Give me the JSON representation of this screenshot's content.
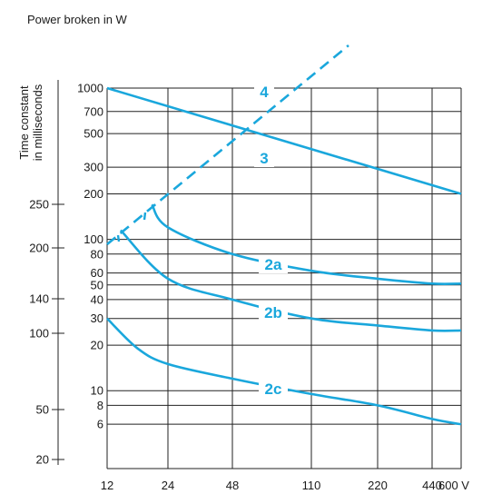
{
  "chart_data": {
    "type": "line",
    "title": "Power broken in W",
    "ylabel": "Time constant in milliseconds",
    "x_ticks": [
      "12",
      "24",
      "48",
      "110",
      "220",
      "440",
      "600 V"
    ],
    "y_ticks_right": [
      "1000",
      "700",
      "500",
      "300",
      "200",
      "100",
      "80",
      "60",
      "50",
      "40",
      "30",
      "20",
      "10",
      "8",
      "6"
    ],
    "y_ticks_left": [
      "250",
      "200",
      "140",
      "100",
      "50",
      "20"
    ],
    "curve_color": "#1aa7dc",
    "grid": true,
    "series": [
      {
        "name": "4",
        "style": "dashed",
        "x": [
          12,
          175
        ],
        "y": [
          110,
          2000
        ]
      },
      {
        "name": "3",
        "x": [
          12,
          600
        ],
        "y": [
          1000,
          200
        ]
      },
      {
        "name": "2a",
        "x": [
          20,
          24,
          48,
          110,
          220,
          440,
          600
        ],
        "y": [
          170,
          120,
          80,
          62,
          55,
          51,
          51
        ]
      },
      {
        "name": "2b",
        "x": [
          14,
          24,
          48,
          110,
          220,
          440,
          600
        ],
        "y": [
          115,
          55,
          40,
          30,
          27,
          25,
          25
        ]
      },
      {
        "name": "2c",
        "x": [
          12,
          17,
          24,
          48,
          110,
          220,
          440,
          600
        ],
        "y": [
          30,
          19,
          15,
          12,
          9.5,
          8,
          6.5,
          6
        ]
      }
    ]
  }
}
